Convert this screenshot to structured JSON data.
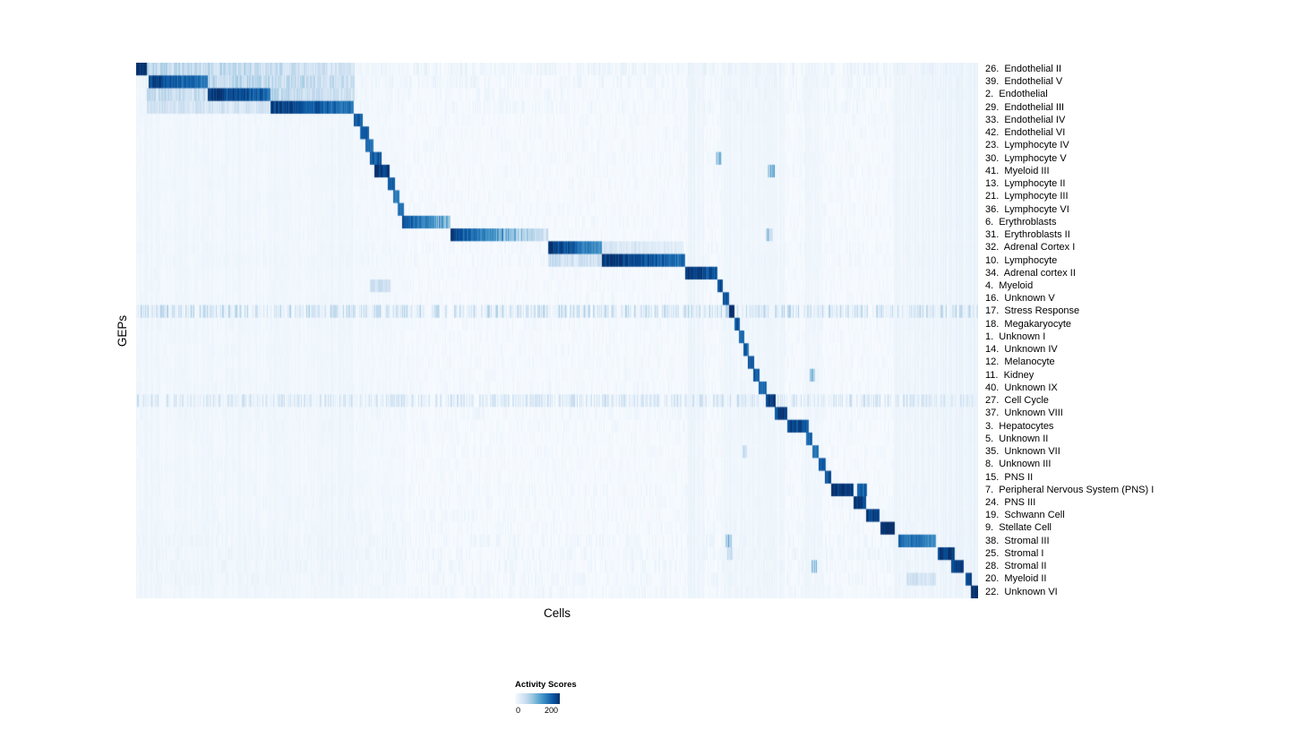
{
  "chart_data": {
    "type": "heatmap",
    "title": "",
    "xlabel": "Cells",
    "ylabel": "GEPs",
    "legend": {
      "title": "Activity Scores",
      "min": 0,
      "max": 200
    },
    "colormap": [
      [
        0,
        "#f7fbff"
      ],
      [
        25,
        "#deebf7"
      ],
      [
        50,
        "#c6dbef"
      ],
      [
        75,
        "#9ecae1"
      ],
      [
        100,
        "#6baed6"
      ],
      [
        125,
        "#4292c6"
      ],
      [
        150,
        "#2171b5"
      ],
      [
        175,
        "#08519c"
      ],
      [
        200,
        "#08306b"
      ]
    ],
    "value_range": [
      0,
      200
    ],
    "bands": [
      [
        0.0,
        0.26,
        6
      ],
      [
        0.26,
        0.32,
        4
      ],
      [
        0.655,
        0.675,
        9
      ],
      [
        0.695,
        0.77,
        7
      ],
      [
        0.795,
        0.815,
        7
      ],
      [
        0.9,
        0.955,
        8
      ],
      [
        0.955,
        1.0,
        11
      ]
    ],
    "rows": [
      {
        "label": "26.  Endothelial II",
        "base": 12,
        "segments": [
          [
            0.0,
            0.013,
            215,
            215
          ],
          [
            0.013,
            0.26,
            60,
            40
          ]
        ]
      },
      {
        "label": "39.  Endothelial V",
        "base": 10,
        "segments": [
          [
            0.015,
            0.085,
            195,
            150
          ],
          [
            0.085,
            0.26,
            62,
            45
          ]
        ]
      },
      {
        "label": "2.  Endothelial",
        "base": 8,
        "segments": [
          [
            0.013,
            0.085,
            48,
            48
          ],
          [
            0.085,
            0.16,
            200,
            160
          ],
          [
            0.16,
            0.26,
            55,
            40
          ]
        ]
      },
      {
        "label": "29.  Endothelial III",
        "base": 8,
        "segments": [
          [
            0.013,
            0.16,
            42,
            36
          ],
          [
            0.16,
            0.258,
            195,
            150
          ]
        ]
      },
      {
        "label": "33.  Endothelial IV",
        "base": 6,
        "segments": [
          [
            0.258,
            0.269,
            175,
            175
          ]
        ]
      },
      {
        "label": "42.  Endothelial VI",
        "base": 6,
        "segments": [
          [
            0.266,
            0.277,
            165,
            165
          ]
        ]
      },
      {
        "label": "23.  Lymphocyte IV",
        "base": 6,
        "segments": [
          [
            0.272,
            0.282,
            155,
            155
          ]
        ]
      },
      {
        "label": "30.  Lymphocyte V",
        "base": 6,
        "segments": [
          [
            0.278,
            0.291,
            175,
            175
          ],
          [
            0.688,
            0.696,
            75,
            75
          ]
        ]
      },
      {
        "label": "41.  Myeloid III",
        "base": 6,
        "segments": [
          [
            0.283,
            0.301,
            205,
            205
          ],
          [
            0.75,
            0.758,
            95,
            95
          ]
        ]
      },
      {
        "label": "13.  Lymphocyte II",
        "base": 6,
        "segments": [
          [
            0.299,
            0.307,
            165,
            165
          ]
        ]
      },
      {
        "label": "21.  Lymphocyte III",
        "base": 6,
        "segments": [
          [
            0.305,
            0.313,
            155,
            155
          ]
        ]
      },
      {
        "label": "36.  Lymphocyte VI",
        "base": 6,
        "segments": [
          [
            0.311,
            0.318,
            155,
            155
          ]
        ]
      },
      {
        "label": "6.  Erythroblasts",
        "base": 6,
        "segments": [
          [
            0.316,
            0.373,
            180,
            95
          ]
        ]
      },
      {
        "label": "31.  Erythroblasts II",
        "base": 6,
        "segments": [
          [
            0.373,
            0.489,
            190,
            40
          ],
          [
            0.748,
            0.756,
            75,
            75
          ]
        ]
      },
      {
        "label": "32.  Adrenal Cortex I",
        "base": 7,
        "segments": [
          [
            0.489,
            0.553,
            200,
            125
          ],
          [
            0.553,
            0.65,
            35,
            25
          ]
        ]
      },
      {
        "label": "10.  Lymphocyte",
        "base": 7,
        "segments": [
          [
            0.489,
            0.553,
            48,
            40
          ],
          [
            0.553,
            0.652,
            205,
            155
          ]
        ]
      },
      {
        "label": "34.  Adrenal cortex II",
        "base": 6,
        "segments": [
          [
            0.652,
            0.69,
            200,
            170
          ]
        ]
      },
      {
        "label": "4.  Myeloid",
        "base": 6,
        "segments": [
          [
            0.278,
            0.302,
            45,
            40
          ],
          [
            0.69,
            0.697,
            190,
            190
          ]
        ]
      },
      {
        "label": "16.  Unknown V",
        "base": 6,
        "segments": [
          [
            0.697,
            0.704,
            170,
            170
          ]
        ]
      },
      {
        "label": "17.  Stress Response",
        "base": 45,
        "segments": [
          [
            0.704,
            0.711,
            205,
            205
          ]
        ]
      },
      {
        "label": "18.  Megakaryocyte",
        "base": 7,
        "segments": [
          [
            0.711,
            0.717,
            170,
            170
          ]
        ]
      },
      {
        "label": "1.  Unknown I",
        "base": 6,
        "segments": [
          [
            0.716,
            0.722,
            160,
            160
          ]
        ]
      },
      {
        "label": "14.  Unknown IV",
        "base": 6,
        "segments": [
          [
            0.721,
            0.728,
            160,
            160
          ]
        ]
      },
      {
        "label": "12.  Melanocyte",
        "base": 6,
        "segments": [
          [
            0.727,
            0.734,
            170,
            170
          ]
        ]
      },
      {
        "label": "11.  Kidney",
        "base": 6,
        "segments": [
          [
            0.733,
            0.74,
            170,
            170
          ],
          [
            0.8,
            0.806,
            80,
            80
          ]
        ]
      },
      {
        "label": "40.  Unknown IX",
        "base": 7,
        "segments": [
          [
            0.739,
            0.749,
            160,
            160
          ]
        ]
      },
      {
        "label": "27.  Cell Cycle",
        "base": 33,
        "segments": [
          [
            0.748,
            0.76,
            190,
            190
          ]
        ]
      },
      {
        "label": "37.  Unknown VIII",
        "base": 8,
        "segments": [
          [
            0.758,
            0.773,
            190,
            190
          ]
        ]
      },
      {
        "label": "3.  Hepatocytes",
        "base": 7,
        "segments": [
          [
            0.773,
            0.799,
            200,
            170
          ]
        ]
      },
      {
        "label": "5.  Unknown II",
        "base": 6,
        "segments": [
          [
            0.796,
            0.803,
            170,
            170
          ]
        ]
      },
      {
        "label": "35.  Unknown VII",
        "base": 6,
        "segments": [
          [
            0.803,
            0.811,
            160,
            160
          ],
          [
            0.72,
            0.726,
            55,
            55
          ]
        ]
      },
      {
        "label": "8.  Unknown III",
        "base": 6,
        "segments": [
          [
            0.811,
            0.819,
            170,
            170
          ]
        ]
      },
      {
        "label": "15.  PNS II",
        "base": 6,
        "segments": [
          [
            0.818,
            0.826,
            180,
            180
          ]
        ]
      },
      {
        "label": "7.  Peripheral Nervous System (PNS) I",
        "base": 7,
        "segments": [
          [
            0.826,
            0.852,
            210,
            200
          ],
          [
            0.856,
            0.868,
            165,
            165
          ]
        ]
      },
      {
        "label": "24.  PNS III",
        "base": 7,
        "segments": [
          [
            0.852,
            0.867,
            200,
            200
          ]
        ]
      },
      {
        "label": "19.  Schwann Cell",
        "base": 7,
        "segments": [
          [
            0.867,
            0.883,
            200,
            200
          ]
        ]
      },
      {
        "label": "9.  Stellate Cell",
        "base": 7,
        "segments": [
          [
            0.884,
            0.901,
            210,
            210
          ]
        ]
      },
      {
        "label": "38.  Stromal III",
        "base": 9,
        "segments": [
          [
            0.905,
            0.95,
            165,
            125
          ],
          [
            0.7,
            0.707,
            90,
            90
          ]
        ]
      },
      {
        "label": "25.  Stromal I",
        "base": 9,
        "segments": [
          [
            0.952,
            0.972,
            190,
            190
          ],
          [
            0.702,
            0.708,
            65,
            65
          ]
        ]
      },
      {
        "label": "28.  Stromal II",
        "base": 9,
        "segments": [
          [
            0.968,
            0.983,
            200,
            200
          ],
          [
            0.802,
            0.808,
            80,
            80
          ]
        ]
      },
      {
        "label": "20.  Myeloid II",
        "base": 9,
        "segments": [
          [
            0.985,
            0.993,
            185,
            185
          ],
          [
            0.915,
            0.95,
            42,
            35
          ]
        ]
      },
      {
        "label": "22.  Unknown VI",
        "base": 8,
        "segments": [
          [
            0.992,
            1.0,
            215,
            215
          ]
        ]
      }
    ]
  }
}
